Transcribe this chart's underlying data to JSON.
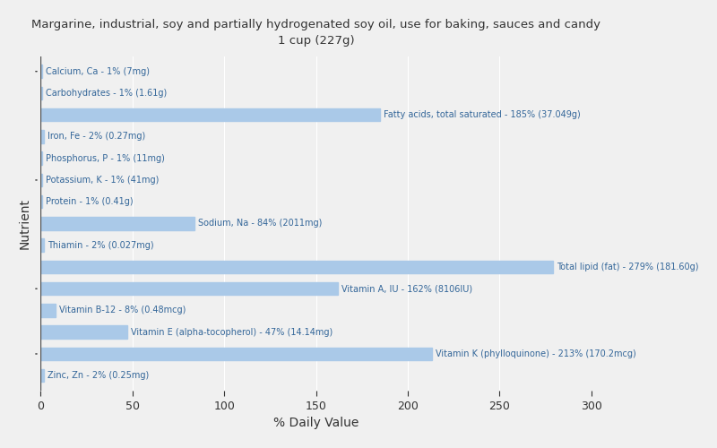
{
  "title_line1": "Margarine, industrial, soy and partially hydrogenated soy oil, use for baking, sauces and candy",
  "title_line2": "1 cup (227g)",
  "xlabel": "% Daily Value",
  "ylabel": "Nutrient",
  "background_color": "#f0f0f0",
  "bar_color": "#aac9e8",
  "label_color": "#336699",
  "nutrients": [
    {
      "name": "Calcium, Ca - 1% (7mg)",
      "value": 1
    },
    {
      "name": "Carbohydrates - 1% (1.61g)",
      "value": 1
    },
    {
      "name": "Fatty acids, total saturated - 185% (37.049g)",
      "value": 185
    },
    {
      "name": "Iron, Fe - 2% (0.27mg)",
      "value": 2
    },
    {
      "name": "Phosphorus, P - 1% (11mg)",
      "value": 1
    },
    {
      "name": "Potassium, K - 1% (41mg)",
      "value": 1
    },
    {
      "name": "Protein - 1% (0.41g)",
      "value": 1
    },
    {
      "name": "Sodium, Na - 84% (2011mg)",
      "value": 84
    },
    {
      "name": "Thiamin - 2% (0.027mg)",
      "value": 2
    },
    {
      "name": "Total lipid (fat) - 279% (181.60g)",
      "value": 279
    },
    {
      "name": "Vitamin A, IU - 162% (8106IU)",
      "value": 162
    },
    {
      "name": "Vitamin B-12 - 8% (0.48mcg)",
      "value": 8
    },
    {
      "name": "Vitamin E (alpha-tocopherol) - 47% (14.14mg)",
      "value": 47
    },
    {
      "name": "Vitamin K (phylloquinone) - 213% (170.2mcg)",
      "value": 213
    },
    {
      "name": "Zinc, Zn - 2% (0.25mg)",
      "value": 2
    }
  ],
  "xlim": [
    0,
    300
  ],
  "xticks": [
    0,
    50,
    100,
    150,
    200,
    250,
    300
  ],
  "figsize": [
    8.0,
    5.0
  ],
  "dpi": 100
}
